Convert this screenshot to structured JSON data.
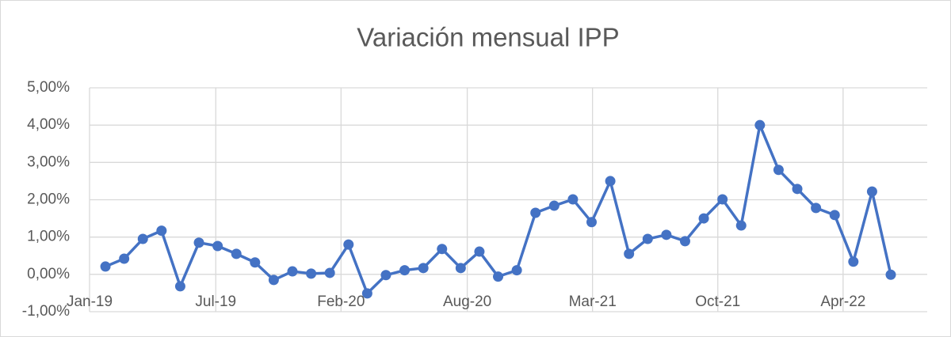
{
  "chart_data": {
    "type": "line",
    "title": "Variación mensual IPP",
    "x": [
      0,
      1,
      2,
      3,
      4,
      5,
      6,
      7,
      8,
      9,
      10,
      11,
      12,
      13,
      14,
      15,
      16,
      17,
      18,
      19,
      20,
      21,
      22,
      23,
      24,
      25,
      26,
      27,
      28,
      29,
      30,
      31,
      32,
      33,
      34,
      35,
      36,
      37,
      38,
      39,
      40,
      41,
      42
    ],
    "series": [
      {
        "name": "IPP",
        "color": "#4472c4",
        "values": [
          0.21,
          0.42,
          0.95,
          1.17,
          -0.32,
          0.85,
          0.76,
          0.55,
          0.32,
          -0.15,
          0.08,
          0.02,
          0.04,
          0.8,
          -0.51,
          -0.02,
          0.11,
          0.17,
          0.68,
          0.17,
          0.61,
          -0.06,
          0.11,
          1.65,
          1.84,
          2.01,
          1.4,
          2.5,
          0.55,
          0.95,
          1.06,
          0.89,
          1.5,
          2.01,
          1.31,
          4.0,
          2.8,
          2.29,
          1.78,
          1.59,
          0.34,
          2.22,
          -0.01
        ]
      }
    ],
    "xlim": [
      -0.85,
      43.95
    ],
    "xticks": [
      {
        "value": -0.85,
        "label": "Jan-19"
      },
      {
        "value": 5.9,
        "label": "Jul-19"
      },
      {
        "value": 12.6,
        "label": "Feb-20"
      },
      {
        "value": 19.35,
        "label": "Aug-20"
      },
      {
        "value": 26.05,
        "label": "Mar-21"
      },
      {
        "value": 32.75,
        "label": "Oct-21"
      },
      {
        "value": 39.45,
        "label": "Apr-22"
      }
    ],
    "ylim": [
      -1,
      5
    ],
    "yticks": [
      {
        "value": -1,
        "label": "-1,00%"
      },
      {
        "value": 0,
        "label": "0,00%"
      },
      {
        "value": 1,
        "label": "1,00%"
      },
      {
        "value": 2,
        "label": "2,00%"
      },
      {
        "value": 3,
        "label": "3,00%"
      },
      {
        "value": 4,
        "label": "4,00%"
      },
      {
        "value": 5,
        "label": "5,00%"
      }
    ],
    "grid": true
  }
}
